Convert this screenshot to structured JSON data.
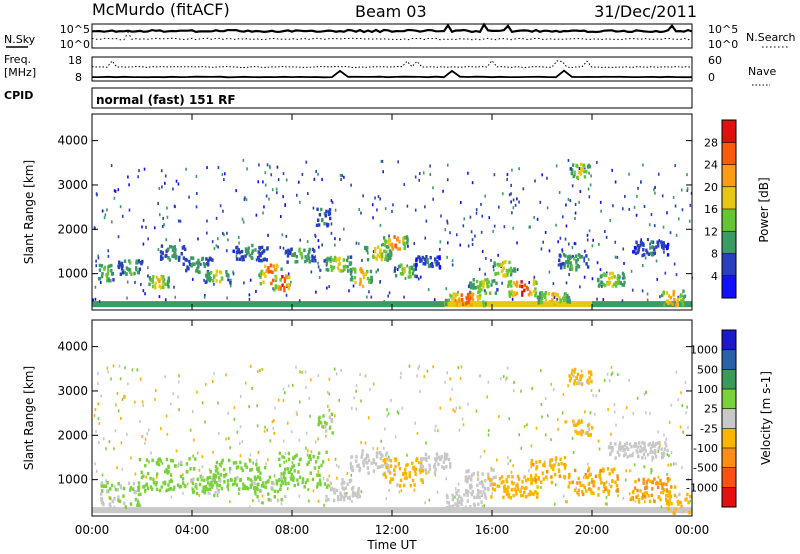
{
  "header": {
    "station": "McMurdo (fitACF)",
    "beam": "Beam 03",
    "date": "31/Dec/2011",
    "mode": "normal (fast) 151 RF"
  },
  "panels": {
    "noise": {
      "left_label": "N.Sky",
      "right_label": "N.Search",
      "left_ticks": [
        "10^5",
        "10^0"
      ],
      "right_ticks": [
        "10^5",
        "10^0"
      ]
    },
    "freq": {
      "left_label_1": "Freq.",
      "left_label_2": "[MHz]",
      "cpid_label": "CPID",
      "right_label": "Nave",
      "left_ticks": [
        "18",
        "8"
      ],
      "right_ticks": [
        "60",
        "0"
      ]
    }
  },
  "colors": {
    "power_scale": [
      "#1010ff",
      "#2840c0",
      "#3c9a64",
      "#66c533",
      "#e6c814",
      "#ff9a14",
      "#ff5a0a",
      "#e01010"
    ],
    "velocity_scale": [
      "#e61010",
      "#ff5010",
      "#ff8c14",
      "#ffb400",
      "#c8c8c8",
      "#7ad23a",
      "#3a9a5a",
      "#2a62a8",
      "#1a1acc"
    ]
  },
  "chart_data": [
    {
      "type": "heatmap",
      "title": "",
      "xlabel": "",
      "ylabel": "Slant Range [km]",
      "x_ticks": [
        "00:00",
        "04:00",
        "08:00",
        "12:00",
        "16:00",
        "20:00",
        "00:00"
      ],
      "y_ticks": [
        "1000",
        "2000",
        "3000",
        "4000"
      ],
      "xlim": [
        0,
        24
      ],
      "ylim": [
        180,
        4600
      ],
      "colorbar": {
        "label": "Power [dB]",
        "ticks": [
          "4",
          "8",
          "12",
          "16",
          "20",
          "24",
          "28"
        ],
        "range": [
          0,
          30
        ]
      },
      "patches": [
        {
          "x": 0.5,
          "r": 1050,
          "w": 0.35,
          "h": 160,
          "v": 14
        },
        {
          "x": 1.5,
          "r": 1180,
          "w": 0.5,
          "h": 140,
          "v": 12
        },
        {
          "x": 2.6,
          "r": 850,
          "w": 0.45,
          "h": 120,
          "v": 20
        },
        {
          "x": 3.2,
          "r": 1500,
          "w": 0.5,
          "h": 150,
          "v": 10
        },
        {
          "x": 4.2,
          "r": 1250,
          "w": 0.6,
          "h": 170,
          "v": 11
        },
        {
          "x": 5.0,
          "r": 950,
          "w": 0.5,
          "h": 130,
          "v": 18
        },
        {
          "x": 6.3,
          "r": 1500,
          "w": 0.7,
          "h": 160,
          "v": 9
        },
        {
          "x": 7.1,
          "r": 1020,
          "w": 0.45,
          "h": 190,
          "v": 26
        },
        {
          "x": 7.6,
          "r": 820,
          "w": 0.35,
          "h": 150,
          "v": 28
        },
        {
          "x": 8.3,
          "r": 1450,
          "w": 0.6,
          "h": 140,
          "v": 12
        },
        {
          "x": 9.2,
          "r": 2300,
          "w": 0.3,
          "h": 180,
          "v": 9
        },
        {
          "x": 9.8,
          "r": 1250,
          "w": 0.55,
          "h": 150,
          "v": 17
        },
        {
          "x": 10.7,
          "r": 950,
          "w": 0.45,
          "h": 180,
          "v": 21
        },
        {
          "x": 11.4,
          "r": 1500,
          "w": 0.55,
          "h": 160,
          "v": 18
        },
        {
          "x": 12.1,
          "r": 1720,
          "w": 0.5,
          "h": 140,
          "v": 24
        },
        {
          "x": 12.5,
          "r": 1100,
          "w": 0.45,
          "h": 130,
          "v": 16
        },
        {
          "x": 13.4,
          "r": 1300,
          "w": 0.5,
          "h": 120,
          "v": 8
        },
        {
          "x": 14.9,
          "r": 450,
          "w": 0.8,
          "h": 120,
          "v": 26
        },
        {
          "x": 15.6,
          "r": 750,
          "w": 0.6,
          "h": 140,
          "v": 16
        },
        {
          "x": 16.4,
          "r": 1150,
          "w": 0.5,
          "h": 150,
          "v": 18
        },
        {
          "x": 17.2,
          "r": 700,
          "w": 0.6,
          "h": 160,
          "v": 28
        },
        {
          "x": 18.4,
          "r": 480,
          "w": 0.7,
          "h": 120,
          "v": 20
        },
        {
          "x": 19.2,
          "r": 1300,
          "w": 0.6,
          "h": 160,
          "v": 12
        },
        {
          "x": 19.5,
          "r": 3350,
          "w": 0.4,
          "h": 140,
          "v": 18
        },
        {
          "x": 20.7,
          "r": 900,
          "w": 0.6,
          "h": 140,
          "v": 17
        },
        {
          "x": 22.3,
          "r": 1600,
          "w": 0.7,
          "h": 140,
          "v": 8
        },
        {
          "x": 23.2,
          "r": 480,
          "w": 0.5,
          "h": 150,
          "v": 22
        }
      ]
    },
    {
      "type": "heatmap",
      "title": "",
      "xlabel": "Time UT",
      "ylabel": "Slant Range [km]",
      "x_ticks": [
        "00:00",
        "04:00",
        "08:00",
        "12:00",
        "16:00",
        "20:00",
        "00:00"
      ],
      "y_ticks": [
        "1000",
        "2000",
        "3000",
        "4000"
      ],
      "xlim": [
        0,
        24
      ],
      "ylim": [
        180,
        4600
      ],
      "colorbar": {
        "label": "Velocity [m s-1]",
        "ticks": [
          "-1000",
          "-500",
          "-100",
          "-25",
          "25",
          "100",
          "500",
          "1000"
        ],
        "range": [
          -1200,
          1200
        ]
      },
      "patches": [
        {
          "x": 1.1,
          "r": 700,
          "w": 0.8,
          "h": 260,
          "v": 150
        },
        {
          "x": 3.0,
          "r": 1150,
          "w": 1.2,
          "h": 330,
          "v": 200
        },
        {
          "x": 4.5,
          "r": 900,
          "w": 0.6,
          "h": 220,
          "v": 180
        },
        {
          "x": 5.8,
          "r": 1150,
          "w": 1.1,
          "h": 300,
          "v": 210
        },
        {
          "x": 7.0,
          "r": 850,
          "w": 0.6,
          "h": 260,
          "v": 190
        },
        {
          "x": 8.4,
          "r": 1250,
          "w": 1.0,
          "h": 380,
          "v": 230
        },
        {
          "x": 9.3,
          "r": 2300,
          "w": 0.3,
          "h": 200,
          "v": 150
        },
        {
          "x": 10.0,
          "r": 800,
          "w": 0.7,
          "h": 220,
          "v": 60
        },
        {
          "x": 11.1,
          "r": 1400,
          "w": 0.8,
          "h": 260,
          "v": 20
        },
        {
          "x": 12.4,
          "r": 1200,
          "w": 0.8,
          "h": 280,
          "v": -200
        },
        {
          "x": 13.7,
          "r": 1400,
          "w": 0.6,
          "h": 200,
          "v": -80
        },
        {
          "x": 14.9,
          "r": 600,
          "w": 0.8,
          "h": 180,
          "v": 80
        },
        {
          "x": 15.5,
          "r": 1050,
          "w": 0.6,
          "h": 200,
          "v": 40
        },
        {
          "x": 16.8,
          "r": 850,
          "w": 1.0,
          "h": 240,
          "v": -260
        },
        {
          "x": 18.2,
          "r": 1250,
          "w": 0.7,
          "h": 260,
          "v": -300
        },
        {
          "x": 19.5,
          "r": 3350,
          "w": 0.45,
          "h": 160,
          "v": -200
        },
        {
          "x": 19.6,
          "r": 2200,
          "w": 0.4,
          "h": 150,
          "v": -180
        },
        {
          "x": 20.0,
          "r": 1000,
          "w": 1.0,
          "h": 280,
          "v": -350
        },
        {
          "x": 21.8,
          "r": 1700,
          "w": 1.2,
          "h": 160,
          "v": 10
        },
        {
          "x": 22.4,
          "r": 800,
          "w": 0.9,
          "h": 240,
          "v": -400
        },
        {
          "x": 23.4,
          "r": 500,
          "w": 0.5,
          "h": 200,
          "v": -200
        }
      ]
    }
  ]
}
